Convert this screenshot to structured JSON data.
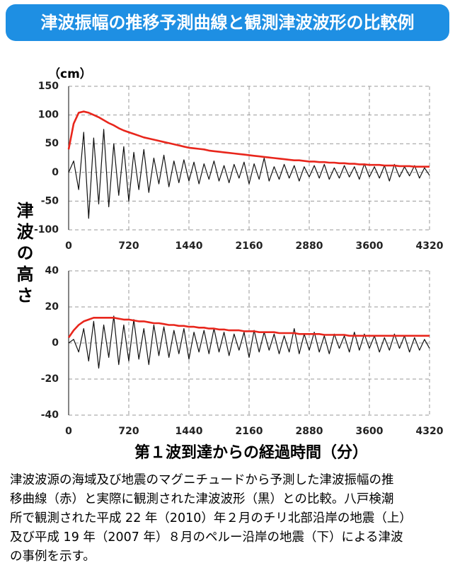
{
  "header": {
    "title": "津波振幅の推移予測曲線と観測津波波形の比較例"
  },
  "chart_data": [
    {
      "type": "line",
      "units": "（cm）",
      "ylabel": "津波の高さ",
      "x": [
        0,
        60,
        120,
        180,
        240,
        300,
        360,
        420,
        480,
        540,
        600,
        660,
        720,
        780,
        840,
        900,
        960,
        1020,
        1080,
        1140,
        1200,
        1260,
        1320,
        1380,
        1440,
        1500,
        1560,
        1620,
        1680,
        1740,
        1800,
        1860,
        1920,
        1980,
        2040,
        2100,
        2160,
        2220,
        2280,
        2340,
        2400,
        2460,
        2520,
        2580,
        2640,
        2700,
        2760,
        2820,
        2880,
        2940,
        3000,
        3060,
        3120,
        3180,
        3240,
        3300,
        3360,
        3420,
        3480,
        3540,
        3600,
        3660,
        3720,
        3780,
        3840,
        3900,
        3960,
        4020,
        4080,
        4140,
        4200,
        4260,
        4320
      ],
      "series": [
        {
          "color": "#111111",
          "values": [
            0,
            20,
            -30,
            70,
            -80,
            60,
            -55,
            75,
            -60,
            50,
            -40,
            45,
            -50,
            35,
            -30,
            40,
            -35,
            25,
            -20,
            30,
            -25,
            20,
            -18,
            22,
            -15,
            18,
            -20,
            15,
            -12,
            20,
            -15,
            12,
            -18,
            14,
            -10,
            18,
            -20,
            15,
            -12,
            25,
            -15,
            10,
            -12,
            14,
            -10,
            12,
            -15,
            10,
            -8,
            12,
            -10,
            14,
            -12,
            8,
            -10,
            12,
            -8,
            10,
            -12,
            15,
            -8,
            10,
            -10,
            12,
            -15,
            14,
            -8,
            10,
            -6,
            12,
            -10,
            8,
            -5
          ]
        },
        {
          "color": "#e8261c",
          "values": [
            40,
            85,
            104,
            106,
            104,
            100,
            96,
            91,
            86,
            82,
            77,
            73,
            70,
            67,
            64,
            61,
            59,
            57,
            55,
            53,
            51,
            49,
            47,
            45,
            43,
            42,
            41,
            40,
            38,
            37,
            36,
            35,
            34,
            33,
            32,
            31,
            30,
            29,
            28,
            27,
            26,
            25,
            24,
            23,
            22,
            21,
            21,
            20,
            19,
            19,
            18,
            18,
            17,
            17,
            16,
            16,
            15,
            15,
            14,
            14,
            13,
            13,
            13,
            12,
            12,
            12,
            11,
            11,
            11,
            10,
            10,
            10,
            10
          ]
        }
      ],
      "xlim": [
        0,
        4320
      ],
      "xticks": [
        0,
        720,
        1440,
        2160,
        2880,
        3600,
        4320
      ],
      "ylim": [
        -100,
        150
      ],
      "yticks": [
        150,
        100,
        50,
        0,
        -50,
        -100
      ],
      "grid": true
    },
    {
      "type": "line",
      "xlabel": "第１波到達からの経過時間（分）",
      "x": [
        0,
        60,
        120,
        180,
        240,
        300,
        360,
        420,
        480,
        540,
        600,
        660,
        720,
        780,
        840,
        900,
        960,
        1020,
        1080,
        1140,
        1200,
        1260,
        1320,
        1380,
        1440,
        1500,
        1560,
        1620,
        1680,
        1740,
        1800,
        1860,
        1920,
        1980,
        2040,
        2100,
        2160,
        2220,
        2280,
        2340,
        2400,
        2460,
        2520,
        2580,
        2640,
        2700,
        2760,
        2820,
        2880,
        2940,
        3000,
        3060,
        3120,
        3180,
        3240,
        3300,
        3360,
        3420,
        3480,
        3540,
        3600,
        3660,
        3720,
        3780,
        3840,
        3900,
        3960,
        4020,
        4080,
        4140,
        4200,
        4260,
        4320
      ],
      "series": [
        {
          "color": "#111111",
          "values": [
            0,
            2,
            -5,
            8,
            -10,
            12,
            -14,
            10,
            -8,
            15,
            -12,
            10,
            -10,
            13,
            -9,
            8,
            -12,
            10,
            -7,
            9,
            -8,
            7,
            -6,
            8,
            -9,
            6,
            -5,
            7,
            -6,
            8,
            -5,
            6,
            -7,
            5,
            -4,
            6,
            -8,
            7,
            -5,
            6,
            -4,
            5,
            -6,
            4,
            -5,
            8,
            -6,
            5,
            -4,
            6,
            -5,
            4,
            -6,
            5,
            -3,
            4,
            -5,
            6,
            -4,
            5,
            -3,
            4,
            -5,
            3,
            -4,
            5,
            -3,
            4,
            -5,
            3,
            -4,
            2,
            -3
          ]
        },
        {
          "color": "#e8261c",
          "values": [
            3,
            7,
            10,
            12,
            13,
            14,
            14,
            14,
            14,
            14,
            13.5,
            13,
            13,
            12.5,
            12,
            12,
            11.5,
            11,
            11,
            10.5,
            10,
            10,
            9.5,
            9.5,
            9,
            9,
            8.5,
            8.5,
            8,
            8,
            7.5,
            7.5,
            7,
            7,
            7,
            6.5,
            6.5,
            6.5,
            6,
            6,
            6,
            6,
            5.5,
            5.5,
            5.5,
            5.5,
            5,
            5,
            5,
            5,
            5,
            4.5,
            4.5,
            4.5,
            4.5,
            4.5,
            4,
            4,
            4,
            4,
            4,
            4,
            4,
            4,
            4,
            4,
            4,
            4,
            4,
            4,
            4,
            4,
            4
          ]
        }
      ],
      "xlim": [
        0,
        4320
      ],
      "xticks": [
        0,
        720,
        1440,
        2160,
        2880,
        3600,
        4320
      ],
      "ylim": [
        -40,
        40
      ],
      "yticks": [
        40,
        20,
        0,
        -20,
        -40
      ],
      "grid": true
    }
  ],
  "caption": [
    "津波波源の海域及び地震のマグニチュードから予測した津波振幅の推",
    "移曲線（赤）と実際に観測された津波波形（黒）との比較。八戸検潮",
    "所で観測された平成 22 年（2010）年２月のチリ北部沿岸の地震（上）",
    "及び平成 19 年（2007 年）８月のペルー沿岸の地震（下）による津波",
    "の事例を示す。"
  ]
}
